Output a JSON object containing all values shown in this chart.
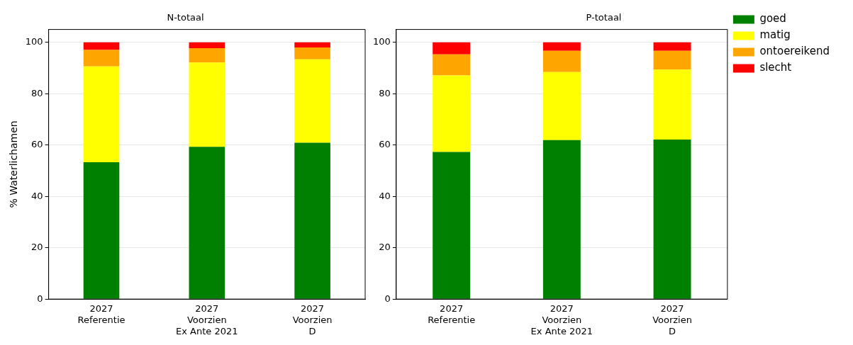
{
  "chart_data": [
    {
      "type": "bar",
      "title": "N-totaal",
      "ylabel": "% Waterlichamen",
      "categories": [
        "2027\nReferentie",
        "2027\nVoorzien\nEx Ante 2021",
        "2027\nVoorzien\nD"
      ],
      "stacked": true,
      "ylim": [
        0,
        105
      ],
      "yticks": [
        0,
        20,
        40,
        60,
        80,
        100
      ],
      "grid": "y",
      "legend": false,
      "series": [
        {
          "color": "#008000",
          "values": [
            53.3,
            59.3,
            60.9
          ]
        },
        {
          "color": "#ffff00",
          "values": [
            37.3,
            32.8,
            32.5
          ]
        },
        {
          "color": "#ffa500",
          "values": [
            6.4,
            5.6,
            4.6
          ]
        },
        {
          "color": "#ff0000",
          "values": [
            3.0,
            2.3,
            2.0
          ]
        }
      ]
    },
    {
      "type": "bar",
      "title": "P-totaal",
      "categories": [
        "2027\nReferentie",
        "2027\nVoorzien\nEx Ante 2021",
        "2027\nVoorzien\nD"
      ],
      "stacked": true,
      "ylim": [
        0,
        105
      ],
      "yticks": [
        0,
        20,
        40,
        60,
        80,
        100
      ],
      "grid": "y",
      "legend": "right",
      "series": [
        {
          "name": "goed",
          "color": "#008000",
          "values": [
            57.3,
            61.9,
            62.1
          ]
        },
        {
          "name": "matig",
          "color": "#ffff00",
          "values": [
            29.8,
            26.5,
            27.3
          ]
        },
        {
          "name": "ontoereikend",
          "color": "#ffa500",
          "values": [
            8.2,
            8.3,
            7.3
          ]
        },
        {
          "name": "slecht",
          "color": "#ff0000",
          "values": [
            4.7,
            3.3,
            3.3
          ]
        }
      ]
    }
  ]
}
